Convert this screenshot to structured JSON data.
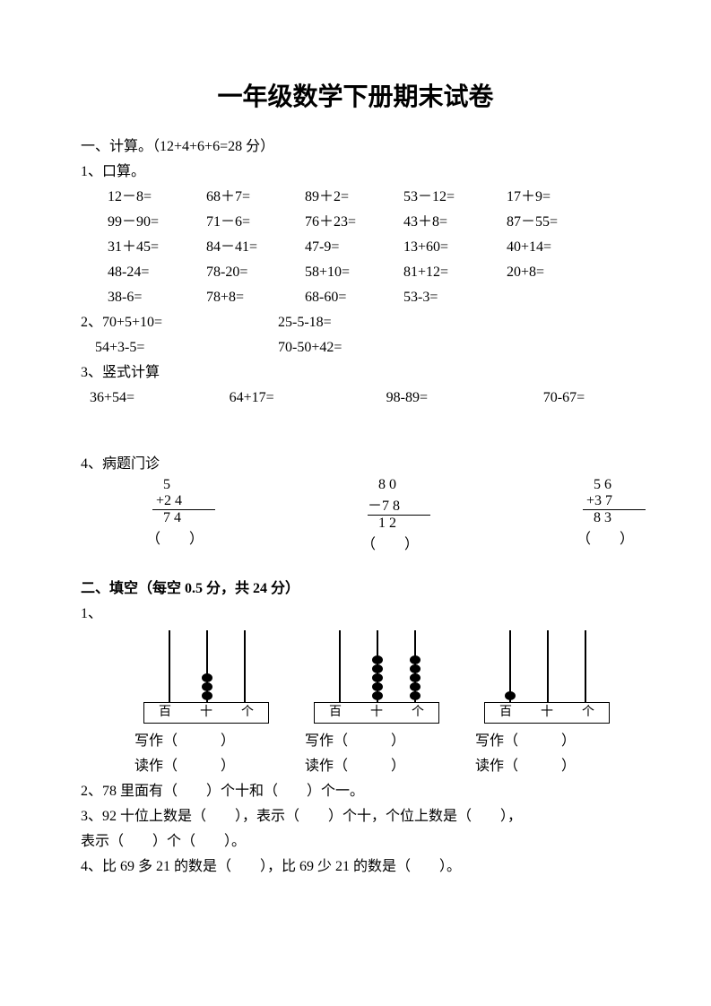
{
  "title": "一年级数学下册期末试卷",
  "s1": {
    "head": "一、计算。（12+4+6+6=28 分）",
    "p1": "1、口算。",
    "r1": [
      "12－8=",
      "68＋7=",
      "89＋2=",
      "53－12=",
      "17＋9="
    ],
    "r2": [
      "99－90=",
      "71－6=",
      "76＋23=",
      "43＋8=",
      "87－55="
    ],
    "r3": [
      "31＋45=",
      "84－41=",
      "47-9=",
      "13+60=",
      "40+14="
    ],
    "r4": [
      "48-24=",
      "78-20=",
      "58+10=",
      "81+12=",
      "20+8="
    ],
    "r5": [
      "38-6=",
      "78+8=",
      "68-60=",
      "53-3=",
      ""
    ],
    "p2a": "2、70+5+10=",
    "p2b": "25-5-18=",
    "p2c": "    54+3-5=",
    "p2d": "70-50+42=",
    "p3": "3、竖式计算",
    "v1": [
      "36+54=",
      "64+17=",
      "98-89=",
      "70-67="
    ],
    "p4": "4、病题门诊",
    "col1": {
      "a": "   5",
      "b": " +2 4",
      "c": "   7 4",
      "d": "（　　）"
    },
    "col2": {
      "a": "   8 0",
      "b": "－7 8",
      "c": "   1 2",
      "d": "（　　）"
    },
    "col3": {
      "a": "   5 6",
      "b": " +3 7",
      "c": "   8 3",
      "d": "（　　）"
    }
  },
  "s2": {
    "head": "二、填空（每空 0.5 分，共 24 分）",
    "p1": "1、",
    "labels": [
      "百",
      "十",
      "个"
    ],
    "abacus": [
      {
        "rods": [
          0,
          3,
          0
        ]
      },
      {
        "rods": [
          0,
          5,
          5
        ]
      },
      {
        "rods": [
          1,
          0,
          0
        ]
      }
    ],
    "write": "写作（　　　）",
    "read": "读作（　　　）",
    "p2": "2、78 里面有（　　）个十和（　　）个一。",
    "p3": "3、92 十位上数是（　　），表示（　　）个十，个位上数是（　　），",
    "p3b": "表示（　　）个（　　）。",
    "p4": "4、比 69 多 21 的数是（　　），比 69 少 21 的数是（　　）。"
  },
  "colw": {
    "c1": 110,
    "c2": 110,
    "c3": 110,
    "c4": 115,
    "c5": 100
  }
}
